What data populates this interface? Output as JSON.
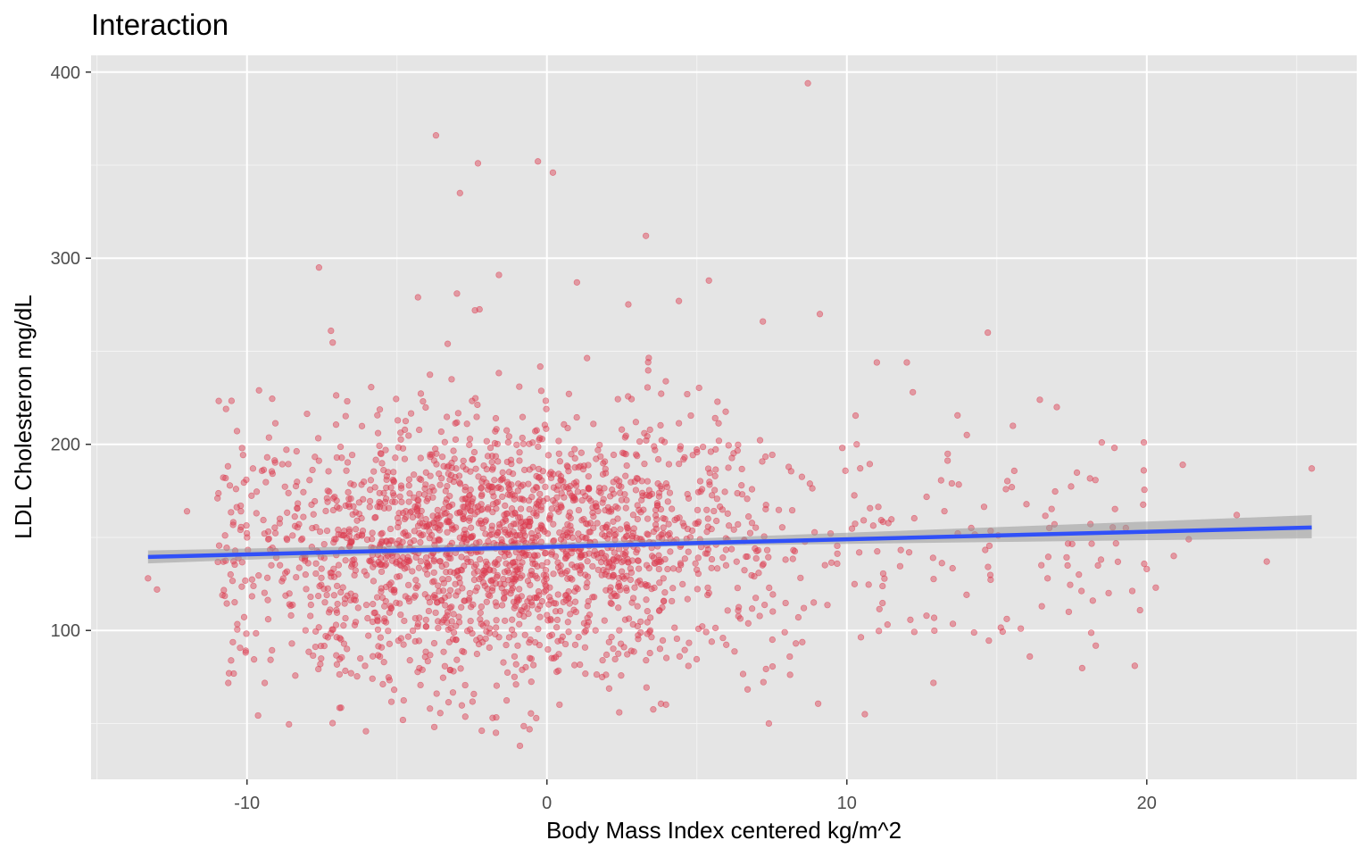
{
  "chart_data": {
    "type": "scatter",
    "title": "Interaction",
    "xlabel": "Body Mass Index centered kg/m^2",
    "ylabel": "LDL Cholesteron mg/dL",
    "xlim": [
      -15.2,
      27
    ],
    "ylim": [
      20,
      409
    ],
    "x_ticks": [
      -10,
      0,
      10,
      20
    ],
    "x_tick_labels": [
      "-10",
      "0",
      "10",
      "20"
    ],
    "y_ticks": [
      100,
      200,
      300,
      400
    ],
    "y_tick_labels": [
      "100",
      "200",
      "300",
      "400"
    ],
    "grid": true,
    "legend": "none",
    "points_color": "#dc3c50",
    "fit_line_color": "#3050f8",
    "band_color": "#999999",
    "panel_background": "#e5e5e5",
    "fit_line": {
      "x_start": -13.3,
      "y_start": 139.5,
      "x_end": 25.5,
      "y_end": 155.3
    },
    "confidence_band": [
      {
        "x": -13.3,
        "lower": 136.0,
        "upper": 143.0
      },
      {
        "x": -5.0,
        "lower": 141.0,
        "upper": 145.5
      },
      {
        "x": 0.0,
        "lower": 143.5,
        "upper": 147.0
      },
      {
        "x": 5.0,
        "lower": 145.5,
        "upper": 149.5
      },
      {
        "x": 10.0,
        "lower": 146.5,
        "upper": 152.5
      },
      {
        "x": 15.0,
        "lower": 147.5,
        "upper": 155.5
      },
      {
        "x": 20.0,
        "lower": 148.5,
        "upper": 158.5
      },
      {
        "x": 25.5,
        "lower": 149.5,
        "upper": 162.0
      }
    ],
    "outliers": [
      {
        "x": 8.7,
        "y": 394
      },
      {
        "x": -3.7,
        "y": 366
      },
      {
        "x": -2.3,
        "y": 351
      },
      {
        "x": -0.3,
        "y": 352
      },
      {
        "x": 0.2,
        "y": 346
      },
      {
        "x": -2.9,
        "y": 335
      },
      {
        "x": 3.3,
        "y": 312
      },
      {
        "x": -7.6,
        "y": 295
      },
      {
        "x": -1.6,
        "y": 291
      },
      {
        "x": 5.4,
        "y": 288
      },
      {
        "x": 1.0,
        "y": 287
      },
      {
        "x": -3.0,
        "y": 281
      },
      {
        "x": -4.3,
        "y": 279
      },
      {
        "x": 4.4,
        "y": 277
      },
      {
        "x": -2.4,
        "y": 272
      },
      {
        "x": 9.1,
        "y": 270
      },
      {
        "x": 7.2,
        "y": 266
      },
      {
        "x": 14.7,
        "y": 260
      },
      {
        "x": -7.2,
        "y": 261
      },
      {
        "x": 17.0,
        "y": 220
      },
      {
        "x": 18.5,
        "y": 201
      },
      {
        "x": 21.2,
        "y": 189
      },
      {
        "x": 25.5,
        "y": 187
      },
      {
        "x": 19.9,
        "y": 186
      },
      {
        "x": 23.0,
        "y": 162
      },
      {
        "x": 24.0,
        "y": 137
      },
      {
        "x": 19.6,
        "y": 81
      },
      {
        "x": 7.4,
        "y": 50
      },
      {
        "x": 10.6,
        "y": 55
      },
      {
        "x": -1.7,
        "y": 45
      },
      {
        "x": -0.9,
        "y": 38
      },
      {
        "x": -3.9,
        "y": 58
      },
      {
        "x": -13.3,
        "y": 128
      },
      {
        "x": -13.0,
        "y": 122
      },
      {
        "x": -12.0,
        "y": 164
      },
      {
        "x": -10.6,
        "y": 77
      },
      {
        "x": -10.7,
        "y": 219
      },
      {
        "x": -9.6,
        "y": 229
      },
      {
        "x": 12.0,
        "y": 244
      },
      {
        "x": 11.0,
        "y": 244
      },
      {
        "x": 13.5,
        "y": 179
      },
      {
        "x": 15.5,
        "y": 177
      },
      {
        "x": 16.1,
        "y": 86
      },
      {
        "x": 17.4,
        "y": 110
      },
      {
        "x": 18.2,
        "y": 116
      },
      {
        "x": 20.3,
        "y": 123
      },
      {
        "x": 20.0,
        "y": 133
      },
      {
        "x": 20.9,
        "y": 140
      },
      {
        "x": 21.4,
        "y": 149
      },
      {
        "x": 14.0,
        "y": 205
      },
      {
        "x": 16.5,
        "y": 113
      },
      {
        "x": 15.8,
        "y": 101
      },
      {
        "x": 12.2,
        "y": 228
      },
      {
        "x": 8.3,
        "y": 93
      }
    ]
  }
}
